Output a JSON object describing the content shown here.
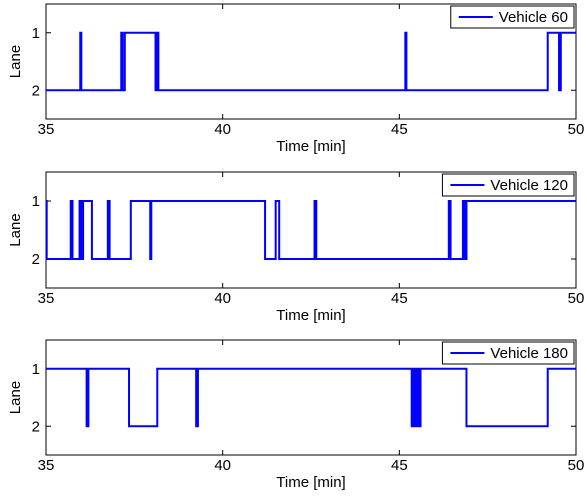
{
  "chart_data": [
    {
      "type": "line",
      "xlabel": "Time [min]",
      "ylabel": "Lane",
      "xlim": [
        35,
        50
      ],
      "ylim": [
        0.5,
        2.5
      ],
      "y_inverted": true,
      "xticks": [
        "35",
        "40",
        "45",
        "50"
      ],
      "yticks": [
        "1",
        "2"
      ],
      "legend_position": "top-right",
      "color": "#0000ff",
      "series": [
        {
          "name": "Vehicle 60",
          "x": [
            35.0,
            35.97,
            35.97,
            36.0,
            36.0,
            37.13,
            37.13,
            37.17,
            37.17,
            37.23,
            37.23,
            37.28,
            37.28,
            38.1,
            38.1,
            38.15,
            38.15,
            38.18,
            38.18,
            45.17,
            45.17,
            45.2,
            45.2,
            49.2,
            49.2,
            49.52,
            49.52,
            49.57,
            49.57,
            50.0
          ],
          "y": [
            2,
            2,
            1,
            1,
            2,
            2,
            1,
            1,
            2,
            2,
            1,
            1,
            1,
            1,
            2,
            2,
            1,
            1,
            2,
            2,
            1,
            1,
            2,
            2,
            1,
            1,
            2,
            2,
            1,
            1
          ]
        },
        {
          "name": "Vehicle 120",
          "x": [
            35.0,
            35.02,
            35.02,
            35.05,
            35.05,
            35.7,
            35.7,
            35.75,
            35.75,
            35.95,
            35.95,
            36.0,
            36.0,
            36.05,
            36.05,
            36.3,
            36.3,
            36.75,
            36.75,
            36.8,
            36.8,
            37.4,
            37.4,
            37.45,
            37.45,
            37.52,
            37.52,
            37.95,
            37.95,
            37.98,
            37.98,
            41.2,
            41.2,
            41.25,
            41.25,
            41.5,
            41.5,
            41.6,
            41.6,
            42.6,
            42.6,
            42.65,
            42.65,
            42.75,
            42.75,
            46.4,
            46.4,
            46.45,
            46.45,
            46.8,
            46.8,
            46.85,
            46.85,
            46.9,
            46.9,
            50.0
          ],
          "y": [
            1,
            1,
            2,
            2,
            2,
            2,
            1,
            1,
            2,
            2,
            1,
            1,
            2,
            2,
            1,
            1,
            2,
            2,
            1,
            1,
            2,
            2,
            1,
            1,
            1,
            1,
            1,
            1,
            2,
            2,
            1,
            1,
            2,
            2,
            2,
            2,
            1,
            1,
            2,
            2,
            1,
            1,
            2,
            2,
            2,
            2,
            1,
            1,
            2,
            2,
            1,
            1,
            2,
            2,
            1,
            1
          ]
        },
        {
          "name": "Vehicle 180",
          "x": [
            35.0,
            36.15,
            36.15,
            36.2,
            36.2,
            37.35,
            37.35,
            38.15,
            38.15,
            39.25,
            39.25,
            39.3,
            39.3,
            45.35,
            45.35,
            45.4,
            45.4,
            45.45,
            45.45,
            45.5,
            45.5,
            45.55,
            45.55,
            45.6,
            45.6,
            46.9,
            46.9,
            47.0,
            47.0,
            49.2,
            49.2,
            50.0
          ],
          "y": [
            1,
            1,
            2,
            2,
            1,
            1,
            2,
            2,
            1,
            1,
            2,
            2,
            1,
            1,
            2,
            2,
            1,
            1,
            2,
            2,
            1,
            1,
            2,
            2,
            1,
            1,
            2,
            2,
            2,
            2,
            1,
            1
          ]
        }
      ]
    }
  ]
}
